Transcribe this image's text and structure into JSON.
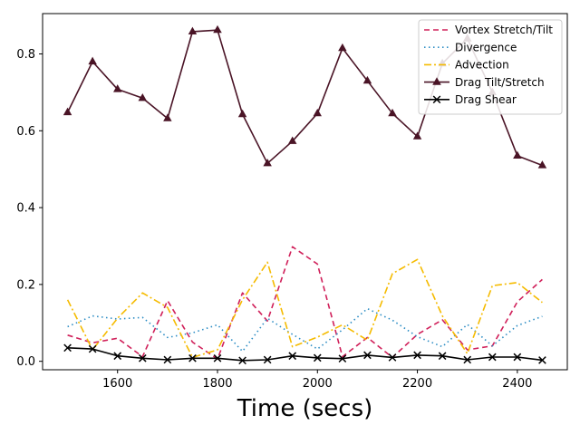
{
  "chart_data": {
    "type": "line",
    "title": "",
    "xlabel": "Time (secs)",
    "ylabel": "",
    "xlim": [
      1450,
      2500
    ],
    "ylim": [
      -0.022,
      0.905
    ],
    "xticks": [
      1600,
      1800,
      2000,
      2200,
      2400
    ],
    "xtick_labels": [
      "1600",
      "1800",
      "2000",
      "2200",
      "2400"
    ],
    "yticks": [
      0.0,
      0.2,
      0.4,
      0.6,
      0.8
    ],
    "ytick_labels": [
      "0.0",
      "0.2",
      "0.4",
      "0.6",
      "0.8"
    ],
    "legend_position": "top-right",
    "x": [
      1500,
      1550,
      1600,
      1650,
      1700,
      1750,
      1800,
      1850,
      1900,
      1950,
      2000,
      2050,
      2100,
      2150,
      2200,
      2250,
      2300,
      2350,
      2400,
      2450
    ],
    "series": [
      {
        "name": "Vortex Stretch/Tilt",
        "color": "#d0205a",
        "dash": "6,4",
        "marker": "none",
        "values": [
          0.068,
          0.048,
          0.06,
          0.012,
          0.158,
          0.05,
          0.006,
          0.178,
          0.105,
          0.298,
          0.253,
          0.012,
          0.062,
          0.01,
          0.07,
          0.108,
          0.03,
          0.04,
          0.155,
          0.213
        ]
      },
      {
        "name": "Divergence",
        "color": "#2b8cc4",
        "dash": "1.5,3.5",
        "marker": "none",
        "values": [
          0.09,
          0.118,
          0.11,
          0.114,
          0.062,
          0.074,
          0.095,
          0.026,
          0.112,
          0.07,
          0.032,
          0.082,
          0.137,
          0.107,
          0.064,
          0.038,
          0.096,
          0.04,
          0.093,
          0.117
        ]
      },
      {
        "name": "Advection",
        "color": "#f5bb00",
        "dash": "8,3,2,3",
        "marker": "none",
        "values": [
          0.16,
          0.03,
          0.112,
          0.178,
          0.14,
          0.01,
          0.03,
          0.16,
          0.258,
          0.038,
          0.063,
          0.095,
          0.055,
          0.228,
          0.265,
          0.118,
          0.02,
          0.197,
          0.205,
          0.153
        ]
      },
      {
        "name": "Drag Tilt/Stretch",
        "color": "#4a1426",
        "dash": "none",
        "marker": "triangle",
        "values": [
          0.648,
          0.78,
          0.708,
          0.685,
          0.632,
          0.858,
          0.862,
          0.643,
          0.515,
          0.573,
          0.645,
          0.815,
          0.73,
          0.645,
          0.585,
          0.775,
          0.84,
          0.7,
          0.535,
          0.51
        ]
      },
      {
        "name": "Drag Shear",
        "color": "#000000",
        "dash": "none",
        "marker": "x",
        "values": [
          0.035,
          0.032,
          0.014,
          0.008,
          0.004,
          0.008,
          0.008,
          0.002,
          0.004,
          0.014,
          0.009,
          0.007,
          0.016,
          0.01,
          0.016,
          0.014,
          0.004,
          0.011,
          0.011,
          0.003
        ]
      }
    ]
  }
}
